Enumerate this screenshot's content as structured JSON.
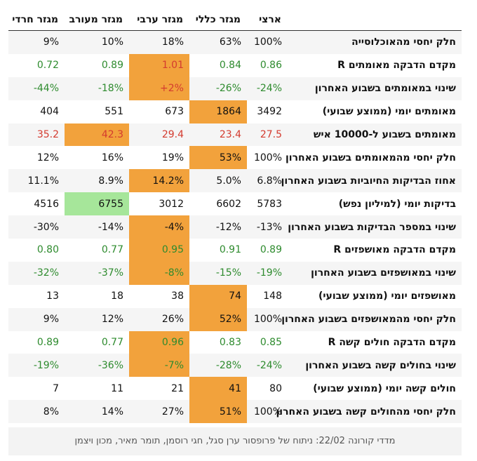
{
  "headers": [
    "מגזר חרדי",
    "מגזר מעורב",
    "מגזר ערבי",
    "מגזר כללי",
    "ארצי",
    ""
  ],
  "rows": [
    {
      "label": "חלק יחסי מהאוכלוסייה",
      "cells": [
        "9%",
        "10%",
        "18%",
        "63%",
        "100%"
      ]
    },
    {
      "label": "מקדם הדבקה מאומתים R",
      "cells": [
        "0.72",
        "0.89",
        "1.01",
        "0.84",
        "0.86"
      ]
    },
    {
      "label": "שינוי במאומתים בשבוע האחרון",
      "cells": [
        "-44%",
        "-18%",
        "+2%",
        "-26%",
        "-24%"
      ]
    },
    {
      "label": "מאומתים יומי (ממוצע שבועי)",
      "cells": [
        "404",
        "551",
        "673",
        "1864",
        "3492"
      ]
    },
    {
      "label": "מאומתים בשבוע ל-10000 איש",
      "cells": [
        "35.2",
        "42.3",
        "29.4",
        "23.4",
        "27.5"
      ]
    },
    {
      "label": "חלק יחסי מהמאומתים בשבוע האחרון",
      "cells": [
        "12%",
        "16%",
        "19%",
        "53%",
        "100%"
      ]
    },
    {
      "label": "אחוז הבדיקות החיוביות בשבוע האחרון",
      "cells": [
        "11.1%",
        "8.9%",
        "14.2%",
        "5.0%",
        "6.8%"
      ]
    },
    {
      "label": "בדיקות יומי (למיליון נפש)",
      "cells": [
        "4516",
        "6755",
        "3012",
        "6602",
        "5783"
      ]
    },
    {
      "label": "שינוי במספר הבדיקות בשבוע האחרון",
      "cells": [
        "-30%",
        "-14%",
        "-4%",
        "-12%",
        "-13%"
      ]
    },
    {
      "label": "מקדם הדבקה מאושפזים R",
      "cells": [
        "0.80",
        "0.77",
        "0.95",
        "0.91",
        "0.89"
      ]
    },
    {
      "label": "שינוי במאושפזים בשבוע האחרון",
      "cells": [
        "-32%",
        "-37%",
        "-8%",
        "-15%",
        "-19%"
      ]
    },
    {
      "label": "מאושפזים יומי (ממוצע שבועי)",
      "cells": [
        "13",
        "18",
        "38",
        "74",
        "148"
      ]
    },
    {
      "label": "חלק יחסי מהמאושפזים בשבוע האחרון",
      "cells": [
        "9%",
        "12%",
        "26%",
        "52%",
        "100%"
      ]
    },
    {
      "label": "מקדם הדבקה חולים קשה R",
      "cells": [
        "0.89",
        "0.77",
        "0.96",
        "0.83",
        "0.85"
      ]
    },
    {
      "label": "שינוי בחולים קשה בשבוע האחרון",
      "cells": [
        "-19%",
        "-36%",
        "-7%",
        "-28%",
        "-24%"
      ]
    },
    {
      "label": "חולים קשה יומי (ממוצע שבועי)",
      "cells": [
        "7",
        "11",
        "21",
        "41",
        "80"
      ]
    },
    {
      "label": "חלק יחסי מהחולים קשה בשבוע האחרון",
      "cells": [
        "8%",
        "14%",
        "27%",
        "51%",
        "100%"
      ]
    }
  ],
  "colors": {
    "orange": "#f2a23c",
    "green_highlight": "#a6e69a",
    "good_text": "#2e8b2e",
    "bad_text": "#d43b2f"
  },
  "footer": "מדדי קורונה 22/02: ניתוח של פרופסור ערן סגל, חגי רוסמן, תומר מאיר, מכון ויצמן"
}
